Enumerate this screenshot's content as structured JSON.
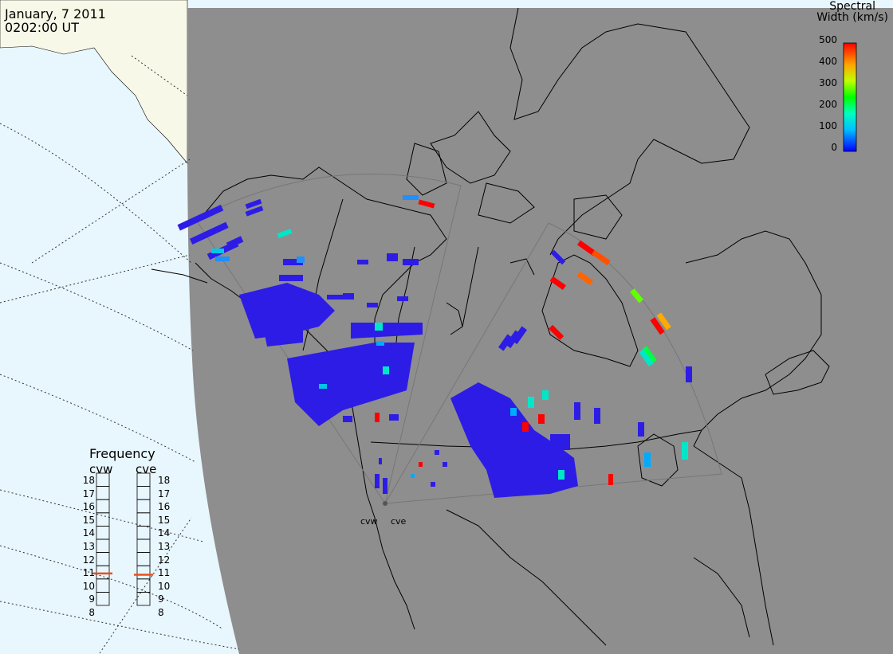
{
  "header": {
    "date": "January, 7 2011",
    "time": "0202:00 UT"
  },
  "colorbar": {
    "title_line1": "Spectral",
    "title_line2": "Width (km/s)",
    "ticks": [
      "500",
      "400",
      "300",
      "200",
      "100",
      "0"
    ],
    "min": 0,
    "max": 500
  },
  "frequency_panel": {
    "title": "Frequency",
    "left_label": "cvw",
    "right_label": "cve",
    "scale": [
      "18",
      "17",
      "16",
      "15",
      "14",
      "13",
      "12",
      "11",
      "10",
      "9",
      "8"
    ],
    "cvw_value_mhz": 10.9,
    "cve_value_mhz": 10.8,
    "marker_color": "#e8501e"
  },
  "radar_labels": {
    "west": "cvw",
    "east": "cve"
  },
  "colors": {
    "land": "#8e8e8e",
    "ocean": "#e8f6fd",
    "asia_land": "#f8f8e8",
    "scatter_primary": "#2d1ce6",
    "fov_outline": "#777777"
  }
}
